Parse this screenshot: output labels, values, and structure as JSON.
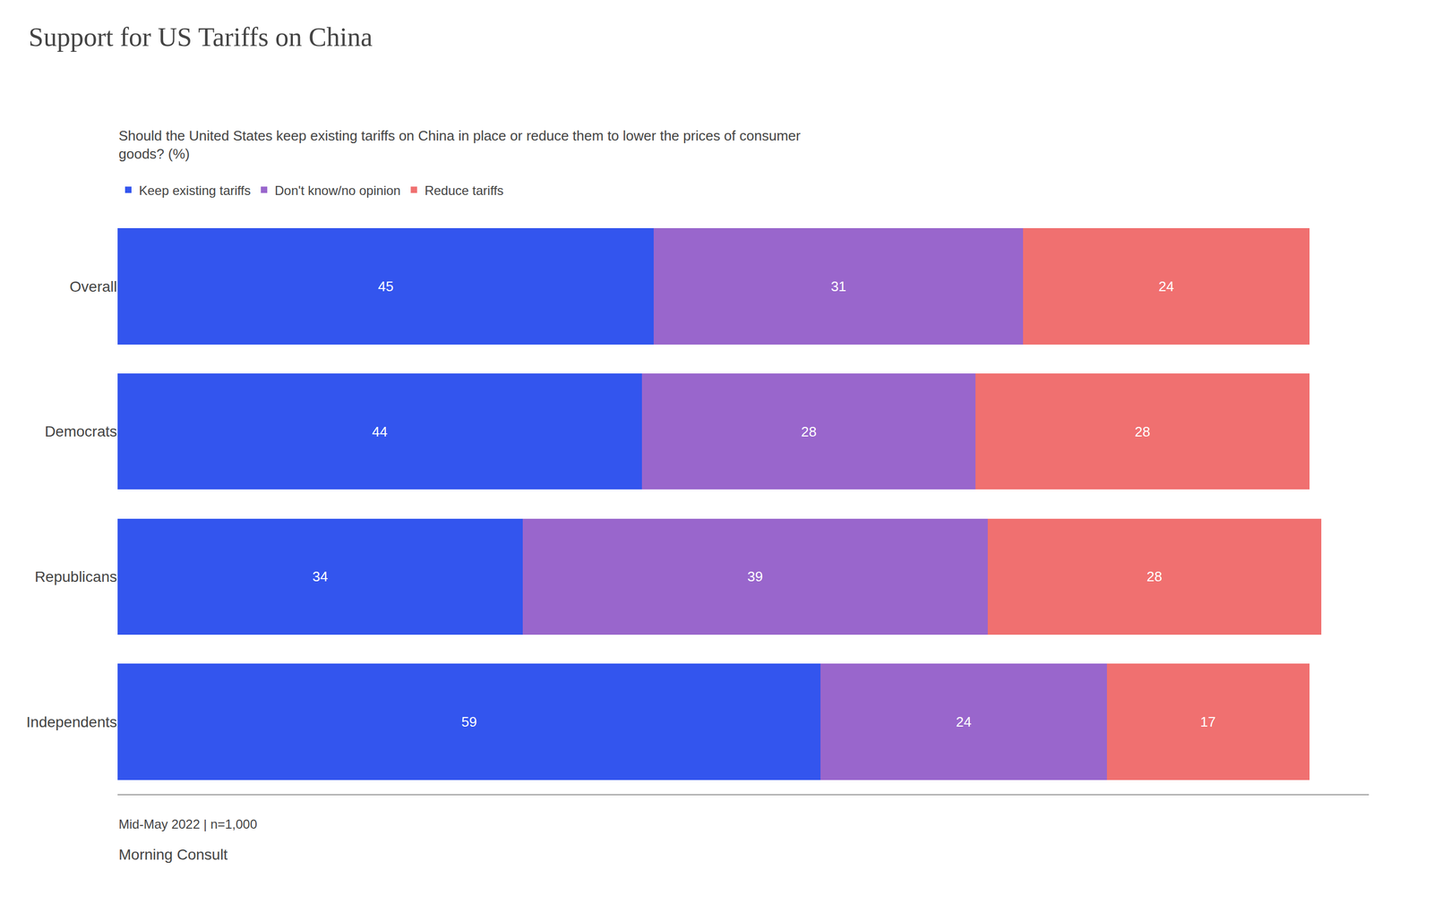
{
  "chart_data": {
    "type": "bar",
    "orientation": "horizontal",
    "stacked": true,
    "title": "Support for US Tariffs on China",
    "subtitle": "Should the United States keep existing tariffs on China in place or reduce them to lower the prices of consumer\ngoods? (%)",
    "categories": [
      "Overall",
      "Democrats",
      "Republicans",
      "Independents"
    ],
    "series": [
      {
        "name": "Keep existing tariffs",
        "color": "#3355ee",
        "values": [
          45,
          44,
          34,
          59
        ]
      },
      {
        "name": "Don't know/no opinion",
        "color": "#9966cc",
        "values": [
          31,
          28,
          39,
          24
        ]
      },
      {
        "name": "Reduce tariffs",
        "color": "#f07070",
        "values": [
          24,
          28,
          28,
          17
        ]
      }
    ],
    "xlim": [
      0,
      105
    ],
    "data_labels": true,
    "tick_labels": "y",
    "grid": false,
    "legend": "top left",
    "annotations": [
      "Mid-May 2022 | n=1,000",
      "Morning Consult"
    ]
  }
}
